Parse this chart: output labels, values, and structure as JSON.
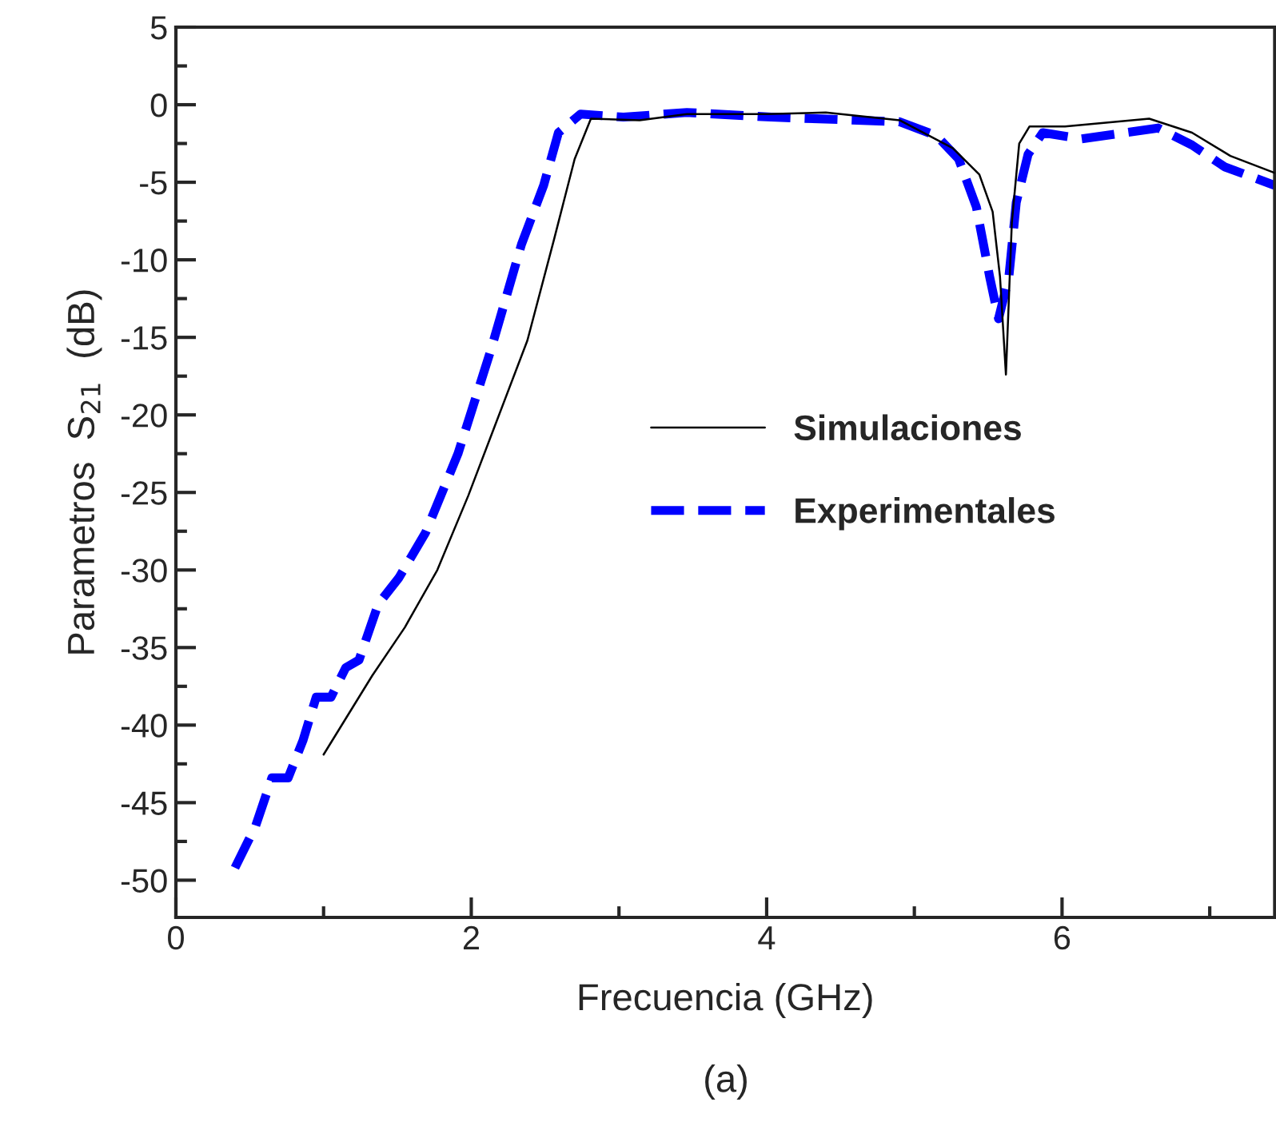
{
  "chart_data": {
    "type": "line",
    "xlabel": "Frecuencia (GHz)",
    "ylabel": "Parametros  S$_{21}$  (dB)",
    "annotations": [
      "(a)"
    ],
    "xlim": [
      0,
      7.44
    ],
    "ylim": [
      -52.4,
      5
    ],
    "xticks": [
      0,
      {
        "value": 1,
        "label": null
      },
      2,
      {
        "value": 3,
        "label": null
      },
      4,
      {
        "value": 5,
        "label": null
      },
      6,
      {
        "value": 7,
        "label": null
      }
    ],
    "yticks": [
      5,
      {
        "value": 2.5,
        "label": null
      },
      0,
      {
        "value": -2.5,
        "label": null
      },
      -5,
      {
        "value": -7.5,
        "label": null
      },
      -10,
      {
        "value": -12.5,
        "label": null
      },
      -15,
      {
        "value": -17.5,
        "label": null
      },
      -20,
      {
        "value": -22.5,
        "label": null
      },
      -25,
      {
        "value": -27.5,
        "label": null
      },
      -30,
      {
        "value": -32.5,
        "label": null
      },
      -35,
      {
        "value": -37.5,
        "label": null
      },
      -40,
      {
        "value": -42.5,
        "label": null
      },
      -45,
      {
        "value": -47.5,
        "label": null
      },
      -50
    ],
    "grid": false,
    "legend": "center right",
    "series": [
      {
        "name": "Simulaciones",
        "color": "#000000",
        "line_style": "solid",
        "x": [
          1.0,
          1.33,
          1.55,
          1.77,
          1.98,
          2.16,
          2.38,
          2.56,
          2.7,
          2.81,
          3.14,
          3.46,
          4.0,
          4.4,
          4.9,
          5.26,
          5.44,
          5.53,
          5.58,
          5.62,
          5.66,
          5.71,
          5.78,
          6.02,
          6.59,
          6.88,
          7.14,
          7.44
        ],
        "values": [
          -41.9,
          -36.8,
          -33.7,
          -30.0,
          -25.2,
          -20.7,
          -15.2,
          -8.7,
          -3.5,
          -0.9,
          -1.0,
          -0.6,
          -0.6,
          -0.5,
          -1.0,
          -2.8,
          -4.5,
          -6.9,
          -11.1,
          -17.4,
          -7.6,
          -2.5,
          -1.4,
          -1.4,
          -0.9,
          -1.8,
          -3.3,
          -4.4
        ]
      },
      {
        "name": "Experimentales",
        "color": "#0000ff",
        "line_style": "dashed",
        "x": [
          0.4,
          0.54,
          0.65,
          0.76,
          0.86,
          0.95,
          1.05,
          1.15,
          1.24,
          1.37,
          1.51,
          1.69,
          1.91,
          2.13,
          2.34,
          2.49,
          2.59,
          2.74,
          3.03,
          3.46,
          4.03,
          4.9,
          5.15,
          5.3,
          5.42,
          5.51,
          5.57,
          5.64,
          5.69,
          5.77,
          5.87,
          6.13,
          6.65,
          6.88,
          7.1,
          7.44
        ],
        "values": [
          -49.2,
          -46.5,
          -43.4,
          -43.4,
          -41.0,
          -38.2,
          -38.2,
          -36.3,
          -35.8,
          -32.2,
          -30.5,
          -27.6,
          -22.5,
          -15.9,
          -9.0,
          -5.2,
          -1.8,
          -0.6,
          -0.8,
          -0.5,
          -0.8,
          -1.1,
          -2.0,
          -3.5,
          -6.6,
          -11.1,
          -13.8,
          -11.1,
          -6.3,
          -3.2,
          -1.8,
          -2.2,
          -1.5,
          -2.6,
          -4.0,
          -5.2
        ]
      }
    ]
  }
}
